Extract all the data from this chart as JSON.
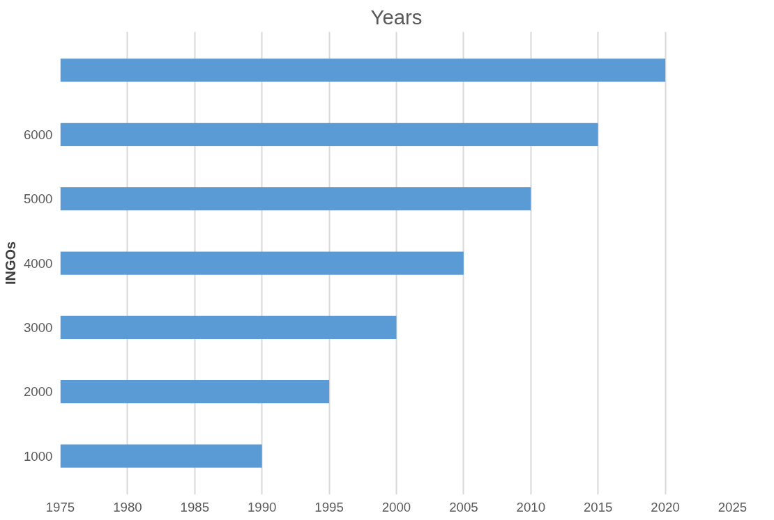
{
  "chart_data": {
    "type": "bar",
    "orientation": "horizontal",
    "title": "Years",
    "ylabel": "INGOs",
    "categories": [
      null,
      "6000",
      "5000",
      "4000",
      "3000",
      "2000",
      "1000"
    ],
    "base": [
      1975,
      1975,
      1975,
      1975,
      1975,
      1975,
      1975
    ],
    "values": [
      45,
      40,
      35,
      30,
      25,
      20,
      15
    ],
    "color": "#5b9bd5",
    "xlim": [
      1975,
      2025
    ],
    "xticks": [
      1975,
      1980,
      1985,
      1990,
      1995,
      2000,
      2005,
      2010,
      2015,
      2020,
      2025
    ],
    "grid": "x"
  }
}
